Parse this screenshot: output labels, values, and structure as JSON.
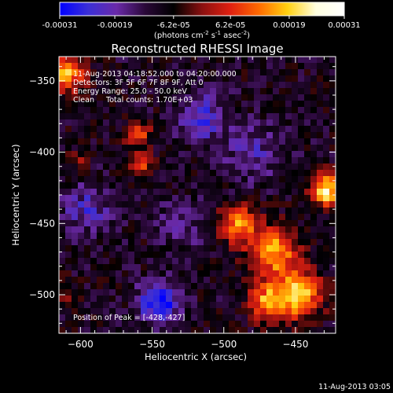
{
  "colorbar": {
    "ticks": [
      "-0.00031",
      "-0.00019",
      "-6.2e-05",
      "6.2e-05",
      "0.00019",
      "0.00031"
    ],
    "tick_values": [
      -0.00031,
      -0.00019,
      -6.2e-05,
      6.2e-05,
      0.00019,
      0.00031
    ],
    "range": [
      -0.00031,
      0.00031
    ],
    "colormap": "blue-purple-red-yellow-white",
    "stops": [
      "#0000ff",
      "#3b2fd6",
      "#6a2aa8",
      "#2a0838",
      "#000000",
      "#8a1010",
      "#e02010",
      "#ff6a00",
      "#ffd010",
      "#ffffe0",
      "#ffffff"
    ],
    "unit_parts": [
      "(photons cm",
      "-2",
      " s",
      "-1",
      " asec",
      "-2",
      ")"
    ]
  },
  "chart_data": {
    "type": "heatmap",
    "title": "Reconstructed RHESSI Image",
    "xlabel": "Heliocentric X (arcsec)",
    "ylabel": "Heliocentric Y (arcsec)",
    "xlim": [
      -615,
      -422
    ],
    "ylim": [
      -527,
      -333
    ],
    "x_ticks": [
      -600,
      -550,
      -500,
      -450
    ],
    "x_tick_labels": [
      "−600",
      "−550",
      "−500",
      "−450"
    ],
    "y_ticks": [
      -500,
      -450,
      -400,
      -350
    ],
    "y_tick_labels": [
      "−500",
      "−450",
      "−400",
      "−350"
    ],
    "value_range": [
      -0.00031,
      0.00031
    ],
    "sources": [
      {
        "x": -428,
        "y": -427,
        "amp": 0.00031,
        "sigma": 8
      },
      {
        "x": -465,
        "y": -470,
        "amp": 0.00026,
        "sigma": 12
      },
      {
        "x": -448,
        "y": -500,
        "amp": 0.0003,
        "sigma": 11
      },
      {
        "x": -490,
        "y": -450,
        "amp": 0.00024,
        "sigma": 9
      },
      {
        "x": -470,
        "y": -505,
        "amp": 0.00022,
        "sigma": 9
      },
      {
        "x": -560,
        "y": -387,
        "amp": 0.00021,
        "sigma": 6
      },
      {
        "x": -557,
        "y": -408,
        "amp": 0.00018,
        "sigma": 5
      },
      {
        "x": -610,
        "y": -345,
        "amp": 0.00026,
        "sigma": 9
      },
      {
        "x": -612,
        "y": -500,
        "amp": 0.0001,
        "sigma": 6
      },
      {
        "x": -600,
        "y": -405,
        "amp": 9e-05,
        "sigma": 5
      },
      {
        "x": -545,
        "y": -505,
        "amp": -0.00022,
        "sigma": 10
      },
      {
        "x": -515,
        "y": -375,
        "amp": -0.00014,
        "sigma": 12
      },
      {
        "x": -595,
        "y": -440,
        "amp": -0.00012,
        "sigma": 12
      },
      {
        "x": -480,
        "y": -400,
        "amp": -0.0001,
        "sigma": 14
      },
      {
        "x": -530,
        "y": -450,
        "amp": -8e-05,
        "sigma": 12
      }
    ]
  },
  "annotations": {
    "time_range": "11-Aug-2013 04:18:52.000 to 04:20:00.000",
    "detectors": "Detectors: 3F 5F 6F 7F 8F 9F, Att 0",
    "energy": "Energy Range: 25.0 - 50.0 keV",
    "clean": "Clean     Total counts: 1.70E+03",
    "peak": "Position of Peak = [-428,-427]",
    "timestamp": "11-Aug-2013 03:05"
  }
}
